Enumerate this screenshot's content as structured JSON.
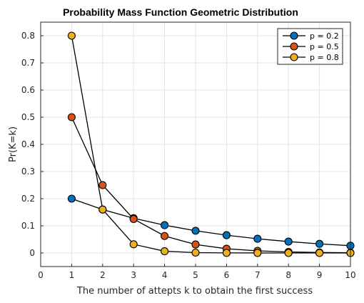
{
  "chart_data": {
    "type": "line",
    "title": "Probability Mass Function Geometric Distribution",
    "xlabel": "The number of attepts k to obtain the first success",
    "ylabel": "Pr(K=k)",
    "xlim": [
      0,
      10
    ],
    "ylim": [
      -0.05,
      0.85
    ],
    "xticks": [
      "0",
      "1",
      "2",
      "3",
      "4",
      "5",
      "6",
      "7",
      "8",
      "9",
      "10"
    ],
    "yticks": [
      "0",
      "0.1",
      "0.2",
      "0.3",
      "0.4",
      "0.5",
      "0.6",
      "0.7",
      "0.8"
    ],
    "grid": true,
    "legend_position": "top-right",
    "x": [
      1,
      2,
      3,
      4,
      5,
      6,
      7,
      8,
      9,
      10
    ],
    "series": [
      {
        "name": "p = 0.2",
        "color": "#0072BD",
        "values": [
          0.2,
          0.16,
          0.128,
          0.1024,
          0.0819,
          0.0655,
          0.0524,
          0.0419,
          0.0336,
          0.0268
        ]
      },
      {
        "name": "p = 0.5",
        "color": "#D95319",
        "values": [
          0.5,
          0.25,
          0.125,
          0.0625,
          0.0313,
          0.0156,
          0.0078,
          0.0039,
          0.002,
          0.001
        ]
      },
      {
        "name": "p = 0.8",
        "color": "#EDB120",
        "values": [
          0.8,
          0.16,
          0.032,
          0.0064,
          0.0013,
          0.0003,
          0.0001,
          0.0,
          0.0,
          0.0
        ]
      }
    ]
  }
}
